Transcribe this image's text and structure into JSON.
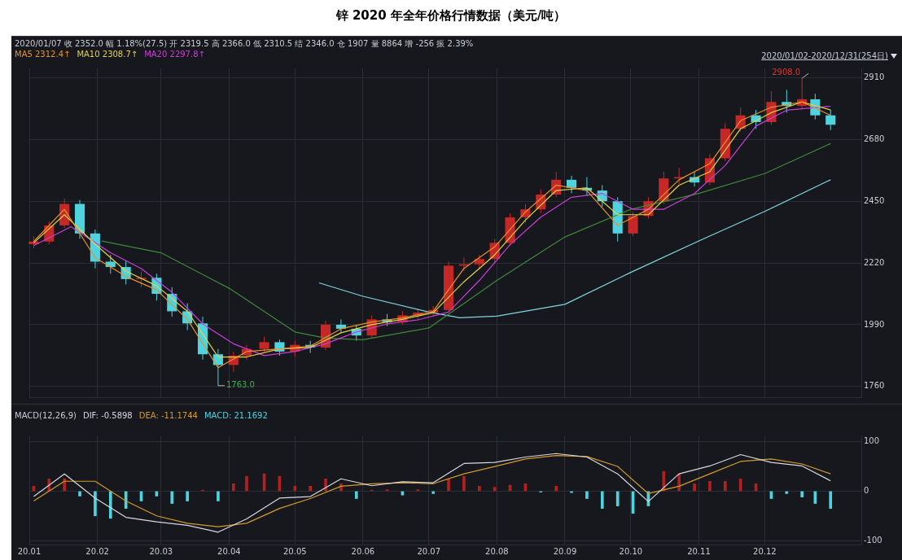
{
  "chart_data": [
    {
      "type": "candlestick",
      "title": "锌 2020 年全年价格行情数据（美元/吨）",
      "annotations": [
        "2020/01/07 收 2352.0 幅 1.18%(27.5) 开 2319.5 高 2366.0 低 2310.5 结 2346.0 仓 1907 量 8864 增 -256 振 2.39%",
        "2020/01/02-2020/12/31(254日)",
        {
          "text": "1763.0",
          "x": "2020-03-27",
          "y": 1763
        },
        {
          "text": "2908.0",
          "x": "2020-12-18",
          "y": 2908
        }
      ],
      "x": [
        "2020-01-03",
        "2020-01-10",
        "2020-01-17",
        "2020-01-24",
        "2020-01-31",
        "2020-02-07",
        "2020-02-14",
        "2020-02-21",
        "2020-02-28",
        "2020-03-06",
        "2020-03-13",
        "2020-03-20",
        "2020-03-27",
        "2020-04-03",
        "2020-04-09",
        "2020-04-17",
        "2020-04-24",
        "2020-05-01",
        "2020-05-08",
        "2020-05-15",
        "2020-05-22",
        "2020-05-29",
        "2020-06-05",
        "2020-06-12",
        "2020-06-19",
        "2020-06-26",
        "2020-07-03",
        "2020-07-10",
        "2020-07-17",
        "2020-07-24",
        "2020-07-31",
        "2020-08-07",
        "2020-08-14",
        "2020-08-21",
        "2020-08-28",
        "2020-09-04",
        "2020-09-11",
        "2020-09-18",
        "2020-09-25",
        "2020-10-02",
        "2020-10-09",
        "2020-10-16",
        "2020-10-23",
        "2020-10-30",
        "2020-11-06",
        "2020-11-13",
        "2020-11-20",
        "2020-11-27",
        "2020-12-04",
        "2020-12-11",
        "2020-12-18",
        "2020-12-24",
        "2020-12-31"
      ],
      "ohlc": [
        [
          2290,
          2320,
          2275,
          2300
        ],
        [
          2300,
          2375,
          2290,
          2360
        ],
        [
          2360,
          2460,
          2350,
          2440
        ],
        [
          2440,
          2455,
          2310,
          2330
        ],
        [
          2330,
          2345,
          2200,
          2225
        ],
        [
          2225,
          2250,
          2180,
          2205
        ],
        [
          2205,
          2230,
          2140,
          2160
        ],
        [
          2160,
          2190,
          2130,
          2165
        ],
        [
          2165,
          2180,
          2080,
          2105
        ],
        [
          2105,
          2130,
          2020,
          2040
        ],
        [
          2040,
          2070,
          1970,
          1995
        ],
        [
          1995,
          2020,
          1860,
          1880
        ],
        [
          1880,
          1900,
          1763,
          1840
        ],
        [
          1840,
          1890,
          1815,
          1875
        ],
        [
          1875,
          1915,
          1860,
          1900
        ],
        [
          1900,
          1945,
          1885,
          1925
        ],
        [
          1925,
          1935,
          1875,
          1890
        ],
        [
          1890,
          1930,
          1870,
          1915
        ],
        [
          1915,
          1930,
          1885,
          1905
        ],
        [
          1905,
          2005,
          1895,
          1990
        ],
        [
          1990,
          2010,
          1960,
          1975
        ],
        [
          1975,
          1990,
          1930,
          1950
        ],
        [
          1950,
          2025,
          1940,
          2010
        ],
        [
          2010,
          2030,
          1985,
          2000
        ],
        [
          2000,
          2040,
          1990,
          2025
        ],
        [
          2025,
          2050,
          2005,
          2035
        ],
        [
          2035,
          2060,
          2020,
          2045
        ],
        [
          2045,
          2225,
          2040,
          2210
        ],
        [
          2210,
          2240,
          2190,
          2215
        ],
        [
          2215,
          2250,
          2195,
          2235
        ],
        [
          2235,
          2310,
          2220,
          2295
        ],
        [
          2295,
          2405,
          2285,
          2390
        ],
        [
          2390,
          2440,
          2370,
          2420
        ],
        [
          2420,
          2495,
          2405,
          2475
        ],
        [
          2475,
          2560,
          2465,
          2530
        ],
        [
          2530,
          2545,
          2480,
          2500
        ],
        [
          2500,
          2540,
          2470,
          2490
        ],
        [
          2490,
          2510,
          2430,
          2450
        ],
        [
          2450,
          2465,
          2300,
          2330
        ],
        [
          2330,
          2410,
          2320,
          2395
        ],
        [
          2395,
          2465,
          2385,
          2450
        ],
        [
          2450,
          2560,
          2440,
          2535
        ],
        [
          2535,
          2575,
          2515,
          2540
        ],
        [
          2540,
          2560,
          2505,
          2520
        ],
        [
          2520,
          2625,
          2510,
          2610
        ],
        [
          2610,
          2740,
          2600,
          2720
        ],
        [
          2720,
          2800,
          2710,
          2770
        ],
        [
          2770,
          2790,
          2720,
          2745
        ],
        [
          2745,
          2860,
          2735,
          2820
        ],
        [
          2820,
          2865,
          2780,
          2805
        ],
        [
          2805,
          2908,
          2795,
          2830
        ],
        [
          2830,
          2850,
          2755,
          2770
        ],
        [
          2770,
          2790,
          2715,
          2735
        ]
      ],
      "colors": [
        "#c62828",
        "#c62828",
        "#c62828",
        "#4fd3df",
        "#4fd3df",
        "#4fd3df",
        "#4fd3df",
        "#c62828",
        "#4fd3df",
        "#4fd3df",
        "#4fd3df",
        "#4fd3df",
        "#4fd3df",
        "#c62828",
        "#c62828",
        "#c62828",
        "#4fd3df",
        "#c62828",
        "#4fd3df",
        "#c62828",
        "#4fd3df",
        "#4fd3df",
        "#c62828",
        "#4fd3df",
        "#c62828",
        "#c62828",
        "#c62828",
        "#c62828",
        "#c62828",
        "#c62828",
        "#c62828",
        "#c62828",
        "#c62828",
        "#c62828",
        "#c62828",
        "#4fd3df",
        "#4fd3df",
        "#4fd3df",
        "#4fd3df",
        "#c62828",
        "#c62828",
        "#c62828",
        "#c62828",
        "#4fd3df",
        "#c62828",
        "#c62828",
        "#c62828",
        "#4fd3df",
        "#c62828",
        "#4fd3df",
        "#c62828",
        "#4fd3df",
        "#4fd3df"
      ],
      "series": [
        {
          "type": "line",
          "name": "MA5 2312.4↑",
          "color": "#e8912c",
          "x": [
            "2020-01-03",
            "2020-01-17",
            "2020-01-31",
            "2020-02-14",
            "2020-02-28",
            "2020-03-13",
            "2020-03-27",
            "2020-04-09",
            "2020-04-24",
            "2020-05-08",
            "2020-05-22",
            "2020-06-05",
            "2020-06-19",
            "2020-07-03",
            "2020-07-17",
            "2020-07-31",
            "2020-08-14",
            "2020-08-28",
            "2020-09-11",
            "2020-09-25",
            "2020-10-09",
            "2020-10-23",
            "2020-11-06",
            "2020-11-20",
            "2020-12-04",
            "2020-12-18",
            "2020-12-31"
          ],
          "values": [
            2300,
            2420,
            2240,
            2170,
            2120,
            2010,
            1830,
            1890,
            1900,
            1910,
            1975,
            2000,
            2015,
            2040,
            2200,
            2280,
            2410,
            2510,
            2490,
            2360,
            2420,
            2530,
            2590,
            2750,
            2800,
            2820,
            2770
          ]
        },
        {
          "type": "line",
          "name": "MA10 2308.7↑",
          "color": "#e3d24a",
          "x": [
            "2020-01-03",
            "2020-01-17",
            "2020-01-31",
            "2020-02-14",
            "2020-02-28",
            "2020-03-13",
            "2020-03-27",
            "2020-04-09",
            "2020-04-24",
            "2020-05-08",
            "2020-05-22",
            "2020-06-05",
            "2020-06-19",
            "2020-07-03",
            "2020-07-17",
            "2020-07-31",
            "2020-08-14",
            "2020-08-28",
            "2020-09-11",
            "2020-09-25",
            "2020-10-09",
            "2020-10-23",
            "2020-11-06",
            "2020-11-20",
            "2020-12-04",
            "2020-12-18",
            "2020-12-31"
          ],
          "values": [
            2295,
            2400,
            2290,
            2190,
            2135,
            2040,
            1870,
            1870,
            1900,
            1905,
            1960,
            1990,
            2010,
            2035,
            2150,
            2250,
            2380,
            2490,
            2500,
            2400,
            2400,
            2510,
            2560,
            2720,
            2780,
            2820,
            2790
          ]
        },
        {
          "type": "line",
          "name": "MA20 2297.8↑",
          "color": "#c83fd6",
          "x": [
            "2020-01-03",
            "2020-01-20",
            "2020-02-07",
            "2020-02-21",
            "2020-03-06",
            "2020-03-20",
            "2020-04-03",
            "2020-04-17",
            "2020-05-01",
            "2020-05-15",
            "2020-05-29",
            "2020-06-12",
            "2020-06-26",
            "2020-07-10",
            "2020-07-24",
            "2020-08-07",
            "2020-08-21",
            "2020-09-04",
            "2020-09-18",
            "2020-10-02",
            "2020-10-16",
            "2020-10-30",
            "2020-11-13",
            "2020-11-27",
            "2020-12-11",
            "2020-12-31"
          ],
          "values": [
            2285,
            2355,
            2258,
            2199,
            2111,
            1993,
            1919,
            1875,
            1890,
            1919,
            1963,
            1993,
            2008,
            2037,
            2155,
            2288,
            2391,
            2465,
            2479,
            2420,
            2420,
            2479,
            2583,
            2730,
            2789,
            2804
          ]
        },
        {
          "type": "line",
          "color": "#3f8a3a",
          "x": [
            "2020-02-03",
            "2020-03-01",
            "2020-04-01",
            "2020-05-01",
            "2020-05-15",
            "2020-06-01",
            "2020-07-01",
            "2020-08-01",
            "2020-09-01",
            "2020-10-01",
            "2020-11-01",
            "2020-12-01",
            "2020-12-31"
          ],
          "values": [
            2302,
            2258,
            2126,
            1963,
            1940,
            1934,
            1978,
            2155,
            2317,
            2420,
            2479,
            2553,
            2665
          ]
        },
        {
          "type": "line",
          "color": "#7fd6de",
          "x": [
            "2020-05-12",
            "2020-06-01",
            "2020-07-01",
            "2020-07-15",
            "2020-08-01",
            "2020-09-01",
            "2020-10-01",
            "2020-11-01",
            "2020-12-01",
            "2020-12-31"
          ],
          "values": [
            2146,
            2096,
            2037,
            2016,
            2022,
            2066,
            2185,
            2302,
            2412,
            2530
          ]
        }
      ],
      "xlim": [
        "2020-01-01",
        "2021-01-14"
      ],
      "xticks": [
        {
          "value": "2020-01-01",
          "label": null
        },
        {
          "value": "2020-02-01",
          "label": null
        },
        {
          "value": "2020-03-01",
          "label": null
        },
        {
          "value": "2020-04-01",
          "label": null
        },
        {
          "value": "2020-05-01",
          "label": null
        },
        {
          "value": "2020-06-01",
          "label": null
        },
        {
          "value": "2020-07-01",
          "label": null
        },
        {
          "value": "2020-08-01",
          "label": null
        },
        {
          "value": "2020-09-01",
          "label": null
        },
        {
          "value": "2020-10-01",
          "label": null
        },
        {
          "value": "2020-11-01",
          "label": null
        },
        {
          "value": "2020-12-01",
          "label": null
        }
      ],
      "ylim": [
        1720,
        2945
      ],
      "yticks": [
        1760,
        1990,
        2220,
        2450,
        2680,
        2910
      ],
      "tick_labels": "y",
      "grid": true,
      "legend": "top left"
    },
    {
      "type": "bar",
      "annotations": [
        "MACD(12,26,9)"
      ],
      "series": [
        {
          "type": "line",
          "name": "DIF: -0.5898",
          "color": "#d8d8e0",
          "x": [
            "2020-01-03",
            "2020-01-17",
            "2020-01-31",
            "2020-02-14",
            "2020-02-28",
            "2020-03-13",
            "2020-03-27",
            "2020-04-09",
            "2020-04-24",
            "2020-05-08",
            "2020-05-22",
            "2020-06-05",
            "2020-06-19",
            "2020-07-03",
            "2020-07-17",
            "2020-07-31",
            "2020-08-14",
            "2020-08-28",
            "2020-09-11",
            "2020-09-25",
            "2020-10-09",
            "2020-10-23",
            "2020-11-06",
            "2020-11-20",
            "2020-12-04",
            "2020-12-18",
            "2020-12-31"
          ],
          "values": [
            -11,
            35,
            -14,
            -53,
            -62,
            -69,
            -83,
            -56,
            -14,
            -11,
            25,
            11,
            19,
            17,
            56,
            58,
            69,
            76,
            69,
            35,
            -21,
            35,
            51,
            74,
            58,
            51,
            21
          ]
        },
        {
          "type": "line",
          "name": "DEA: -11.1744",
          "color": "#d49a2e",
          "x": [
            "2020-01-03",
            "2020-01-17",
            "2020-01-31",
            "2020-02-14",
            "2020-02-28",
            "2020-03-13",
            "2020-03-27",
            "2020-04-09",
            "2020-04-24",
            "2020-05-08",
            "2020-05-22",
            "2020-06-05",
            "2020-06-19",
            "2020-07-03",
            "2020-07-17",
            "2020-07-31",
            "2020-08-14",
            "2020-08-28",
            "2020-09-11",
            "2020-09-25",
            "2020-10-09",
            "2020-10-23",
            "2020-11-06",
            "2020-11-20",
            "2020-12-04",
            "2020-12-18",
            "2020-12-31"
          ],
          "values": [
            -20,
            20,
            20,
            -20,
            -50,
            -65,
            -72,
            -65,
            -35,
            -15,
            10,
            15,
            17,
            15,
            35,
            50,
            65,
            72,
            70,
            50,
            -5,
            10,
            35,
            60,
            65,
            55,
            35
          ]
        },
        {
          "type": "bar",
          "name": "MACD: 21.1692",
          "color": "#4fd3df",
          "x": [
            "2020-01-03",
            "2020-01-10",
            "2020-01-17",
            "2020-01-24",
            "2020-01-31",
            "2020-02-07",
            "2020-02-14",
            "2020-02-21",
            "2020-02-28",
            "2020-03-06",
            "2020-03-13",
            "2020-03-20",
            "2020-03-27",
            "2020-04-03",
            "2020-04-09",
            "2020-04-17",
            "2020-04-24",
            "2020-05-01",
            "2020-05-08",
            "2020-05-15",
            "2020-05-22",
            "2020-05-29",
            "2020-06-05",
            "2020-06-12",
            "2020-06-19",
            "2020-06-26",
            "2020-07-03",
            "2020-07-10",
            "2020-07-17",
            "2020-07-24",
            "2020-07-31",
            "2020-08-07",
            "2020-08-14",
            "2020-08-21",
            "2020-08-28",
            "2020-09-04",
            "2020-09-11",
            "2020-09-18",
            "2020-09-25",
            "2020-10-02",
            "2020-10-09",
            "2020-10-16",
            "2020-10-23",
            "2020-10-30",
            "2020-11-06",
            "2020-11-13",
            "2020-11-20",
            "2020-11-27",
            "2020-12-04",
            "2020-12-11",
            "2020-12-18",
            "2020-12-24",
            "2020-12-31"
          ],
          "values": [
            10,
            25,
            25,
            -10,
            -50,
            -55,
            -35,
            -20,
            -10,
            -25,
            -20,
            2,
            -20,
            15,
            30,
            35,
            30,
            10,
            10,
            25,
            15,
            -15,
            2,
            3,
            -8,
            3,
            -5,
            25,
            30,
            10,
            8,
            12,
            15,
            -2,
            10,
            -3,
            -15,
            -35,
            -30,
            -45,
            -30,
            40,
            35,
            15,
            20,
            20,
            25,
            15,
            -15,
            -5,
            -12,
            -25,
            -35
          ],
          "colors": [
            "#b3201f",
            "#b3201f",
            "#b3201f",
            "#4fd3df",
            "#4fd3df",
            "#4fd3df",
            "#4fd3df",
            "#4fd3df",
            "#4fd3df",
            "#4fd3df",
            "#4fd3df",
            "#b3201f",
            "#4fd3df",
            "#b3201f",
            "#b3201f",
            "#b3201f",
            "#b3201f",
            "#b3201f",
            "#b3201f",
            "#b3201f",
            "#b3201f",
            "#4fd3df",
            "#b3201f",
            "#b3201f",
            "#4fd3df",
            "#b3201f",
            "#4fd3df",
            "#b3201f",
            "#b3201f",
            "#b3201f",
            "#b3201f",
            "#b3201f",
            "#b3201f",
            "#4fd3df",
            "#b3201f",
            "#4fd3df",
            "#4fd3df",
            "#4fd3df",
            "#4fd3df",
            "#4fd3df",
            "#4fd3df",
            "#b3201f",
            "#b3201f",
            "#b3201f",
            "#b3201f",
            "#b3201f",
            "#b3201f",
            "#b3201f",
            "#4fd3df",
            "#4fd3df",
            "#4fd3df",
            "#4fd3df",
            "#4fd3df"
          ]
        }
      ],
      "xlim": [
        "2020-01-01",
        "2021-01-14"
      ],
      "xticks": [
        {
          "value": "2020-01-01",
          "label": "20.01"
        },
        {
          "value": "2020-02-01",
          "label": "20.02"
        },
        {
          "value": "2020-03-01",
          "label": "20.03"
        },
        {
          "value": "2020-04-01",
          "label": "20.04"
        },
        {
          "value": "2020-05-01",
          "label": "20.05"
        },
        {
          "value": "2020-06-01",
          "label": "20.06"
        },
        {
          "value": "2020-07-01",
          "label": "20.07"
        },
        {
          "value": "2020-08-01",
          "label": "20.08"
        },
        {
          "value": "2020-09-01",
          "label": "20.09"
        },
        {
          "value": "2020-10-01",
          "label": "20.10"
        },
        {
          "value": "2020-11-01",
          "label": "20.11"
        },
        {
          "value": "2020-12-01",
          "label": "20.12"
        }
      ],
      "ylim": [
        -108,
        111
      ],
      "yticks": [
        -100,
        0,
        100
      ],
      "grid": true,
      "legend": "top left"
    }
  ]
}
